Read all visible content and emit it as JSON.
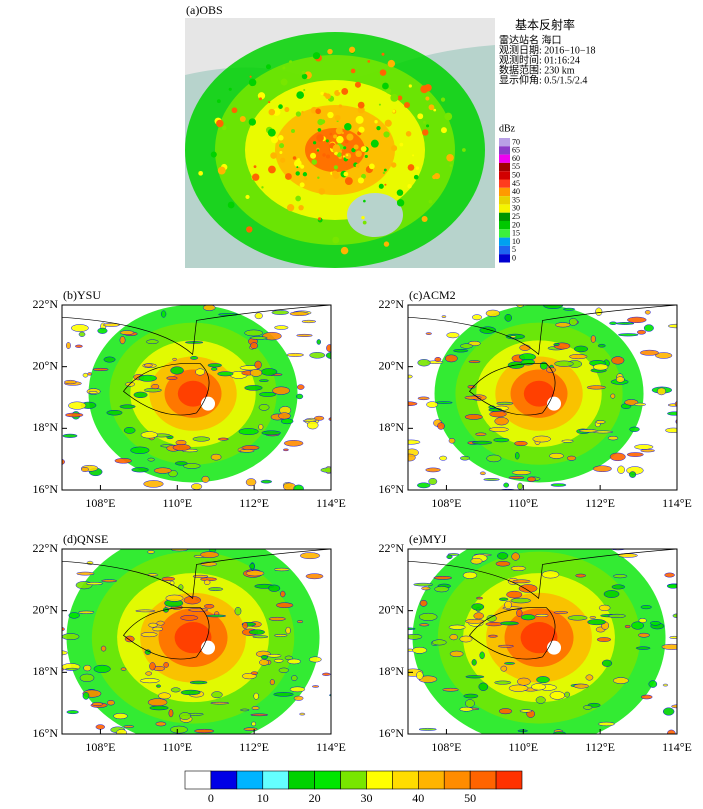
{
  "obs": {
    "label": "(a)OBS",
    "title": "基本反射率",
    "info": [
      "雷达站名 海口",
      "观测日期: 2016−10−18",
      "观测时间: 01:16:24",
      "数据范围: 230 km",
      "显示仰角: 0.5/1.5/2.4"
    ],
    "unit": "dBz",
    "scale": [
      {
        "label": "70",
        "color": "#b9a0e6"
      },
      {
        "label": "65",
        "color": "#8c3cc8"
      },
      {
        "label": "60",
        "color": "#f000f0"
      },
      {
        "label": "55",
        "color": "#a00000"
      },
      {
        "label": "50",
        "color": "#d20000"
      },
      {
        "label": "45",
        "color": "#ff3c1e"
      },
      {
        "label": "40",
        "color": "#ff9a00"
      },
      {
        "label": "35",
        "color": "#e8d200"
      },
      {
        "label": "30",
        "color": "#f5f500"
      },
      {
        "label": "25",
        "color": "#009600"
      },
      {
        "label": "20",
        "color": "#00c800"
      },
      {
        "label": "15",
        "color": "#3cf03c"
      },
      {
        "label": "10",
        "color": "#00a0f0"
      },
      {
        "label": "5",
        "color": "#1e64f0"
      },
      {
        "label": "0",
        "color": "#0000d0"
      }
    ]
  },
  "panels": [
    {
      "label": "(b)YSU"
    },
    {
      "label": "(c)ACM2"
    },
    {
      "label": "(d)QNSE"
    },
    {
      "label": "(e)MYJ"
    }
  ],
  "lonlim": [
    107,
    114
  ],
  "latlim": [
    16,
    22
  ],
  "lonticks": [
    {
      "value": 108,
      "label": "108°E"
    },
    {
      "value": 110,
      "label": "110°E"
    },
    {
      "value": 112,
      "label": "112°E"
    },
    {
      "value": 114,
      "label": "114°E"
    }
  ],
  "latticks": [
    {
      "value": 16,
      "label": "16°N"
    },
    {
      "value": 18,
      "label": "18°N"
    },
    {
      "value": 20,
      "label": "20°N"
    },
    {
      "value": 22,
      "label": "22°N"
    }
  ],
  "colorbar": {
    "lim": [
      -5,
      60
    ],
    "ticks": [
      0,
      10,
      20,
      30,
      40,
      50
    ],
    "colors": [
      "#ffffff",
      "#0000e6",
      "#00b4ff",
      "#64ffff",
      "#00d200",
      "#00e600",
      "#78e600",
      "#ffff00",
      "#ffdc00",
      "#ffb400",
      "#ff8c00",
      "#ff6400",
      "#ff3200"
    ]
  }
}
